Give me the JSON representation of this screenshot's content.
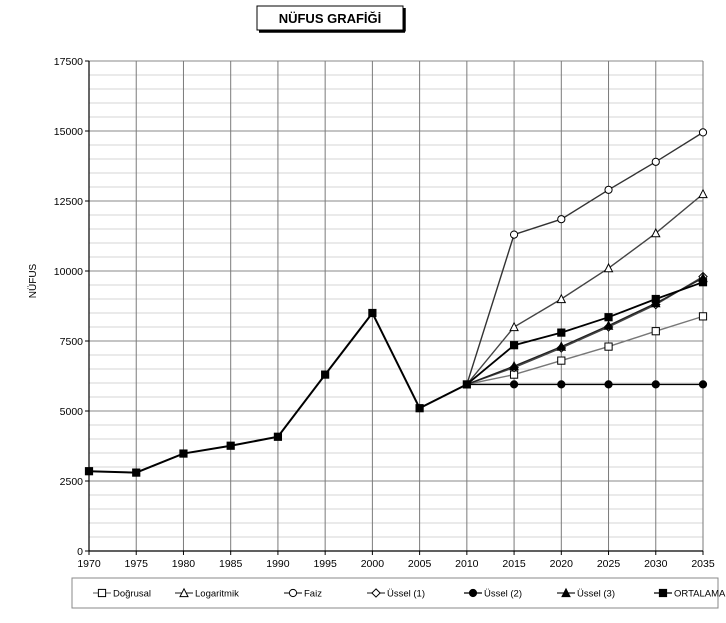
{
  "chart_data": {
    "type": "line",
    "title": "NÜFUS GRAFİĞİ",
    "xlabel": "",
    "ylabel": "NÜFUS",
    "x": [
      1970,
      1975,
      1980,
      1985,
      1990,
      1995,
      2000,
      2005,
      2010,
      2015,
      2020,
      2025,
      2030,
      2035
    ],
    "ylim": [
      0,
      17500
    ],
    "yticks": [
      0,
      2500,
      5000,
      7500,
      10000,
      12500,
      15000,
      17500
    ],
    "grid": true,
    "legend_position": "bottom",
    "historical": {
      "x": [
        1970,
        1975,
        1980,
        1985,
        1990,
        1995,
        2000,
        2005,
        2010
      ],
      "values": [
        2850,
        2800,
        3480,
        3760,
        4080,
        6300,
        8500,
        5100,
        5950
      ]
    },
    "series": [
      {
        "name": "Doğrusal",
        "marker": "square-open",
        "x": [
          2010,
          2015,
          2020,
          2025,
          2030,
          2035
        ],
        "values": [
          5950,
          6300,
          6800,
          7300,
          7850,
          8380
        ]
      },
      {
        "name": "Logaritmik",
        "marker": "triangle-open",
        "x": [
          2010,
          2015,
          2020,
          2025,
          2030,
          2035
        ],
        "values": [
          5950,
          8000,
          9000,
          10100,
          11350,
          12750
        ]
      },
      {
        "name": "Faiz",
        "marker": "circle-open",
        "x": [
          2010,
          2015,
          2020,
          2025,
          2030,
          2035
        ],
        "values": [
          5950,
          11300,
          11850,
          12900,
          13900,
          14950
        ]
      },
      {
        "name": "Üssel (1)",
        "marker": "diamond-open",
        "x": [
          2010,
          2015,
          2020,
          2025,
          2030,
          2035
        ],
        "values": [
          5950,
          6550,
          7250,
          8000,
          8800,
          9800
        ]
      },
      {
        "name": "Üssel (2)",
        "marker": "circle-filled",
        "x": [
          2010,
          2015,
          2020,
          2025,
          2030,
          2035
        ],
        "values": [
          5950,
          5950,
          5950,
          5950,
          5950,
          5950
        ]
      },
      {
        "name": "Üssel (3)",
        "marker": "triangle-filled",
        "x": [
          2010,
          2015,
          2020,
          2025,
          2030,
          2035
        ],
        "values": [
          5950,
          6600,
          7300,
          8050,
          8850,
          9750
        ]
      },
      {
        "name": "ORTALAMA",
        "marker": "square-filled",
        "x": [
          2010,
          2015,
          2020,
          2025,
          2030,
          2035
        ],
        "values": [
          5950,
          7350,
          7800,
          8350,
          9000,
          9600
        ]
      }
    ]
  }
}
